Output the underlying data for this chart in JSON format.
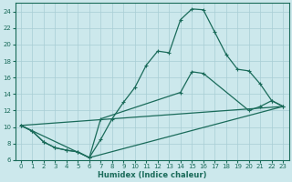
{
  "xlabel": "Humidex (Indice chaleur)",
  "bg_color": "#cce8ec",
  "grid_color": "#a8cdd4",
  "line_color": "#1a6b5a",
  "xlim": [
    -0.5,
    23.5
  ],
  "ylim": [
    6,
    25
  ],
  "yticks": [
    6,
    8,
    10,
    12,
    14,
    16,
    18,
    20,
    22,
    24
  ],
  "xticks": [
    0,
    1,
    2,
    3,
    4,
    5,
    6,
    7,
    8,
    9,
    10,
    11,
    12,
    13,
    14,
    15,
    16,
    17,
    18,
    19,
    20,
    21,
    22,
    23
  ],
  "line1_x": [
    0,
    1,
    2,
    3,
    4,
    5,
    6,
    7,
    8,
    9,
    10,
    11,
    12,
    13,
    14,
    15,
    16,
    17,
    18,
    19,
    20,
    21,
    22,
    23
  ],
  "line1_y": [
    10.2,
    9.5,
    8.2,
    7.5,
    7.2,
    7.0,
    6.3,
    8.5,
    11.0,
    13.0,
    14.8,
    17.5,
    19.2,
    19.0,
    23.0,
    24.3,
    24.2,
    21.5,
    18.8,
    17.0,
    16.8,
    15.2,
    13.2,
    12.5
  ],
  "line2_x": [
    0,
    1,
    2,
    3,
    4,
    5,
    6,
    7,
    14,
    15,
    16,
    20,
    21,
    22,
    23
  ],
  "line2_y": [
    10.2,
    9.5,
    8.2,
    7.5,
    7.2,
    7.0,
    6.3,
    11.0,
    14.2,
    16.7,
    16.5,
    12.0,
    12.5,
    13.2,
    12.5
  ],
  "line3_x": [
    0,
    6,
    23
  ],
  "line3_y": [
    10.2,
    6.3,
    12.5
  ],
  "line4_x": [
    0,
    23
  ],
  "line4_y": [
    10.2,
    12.5
  ]
}
